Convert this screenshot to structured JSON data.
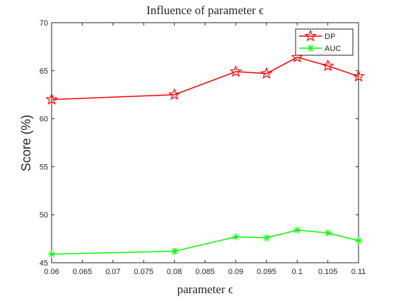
{
  "chart_data": {
    "type": "line",
    "title": "Influence of parameter ϵ",
    "xlabel": "parameter ϵ",
    "ylabel": "Score (%)",
    "xlim": [
      0.06,
      0.11
    ],
    "ylim": [
      45,
      70
    ],
    "x_ticks": [
      "0.06",
      "0.065",
      "0.07",
      "0.075",
      "0.08",
      "0.085",
      "0.09",
      "0.095",
      "0.1",
      "0.105",
      "0.11"
    ],
    "y_ticks": [
      "45",
      "50",
      "55",
      "60",
      "65",
      "70"
    ],
    "x": [
      0.06,
      0.08,
      0.09,
      0.095,
      0.1,
      0.105,
      0.11
    ],
    "series": [
      {
        "name": "DP",
        "color": "#ff0000",
        "marker": "pentagram",
        "values": [
          62.0,
          62.5,
          64.9,
          64.7,
          66.4,
          65.5,
          64.4
        ]
      },
      {
        "name": "AUC",
        "color": "#00ff00",
        "marker": "asterisk",
        "values": [
          45.9,
          46.2,
          47.7,
          47.6,
          48.4,
          48.1,
          47.3
        ]
      }
    ],
    "legend": "top-right",
    "grid": false
  }
}
